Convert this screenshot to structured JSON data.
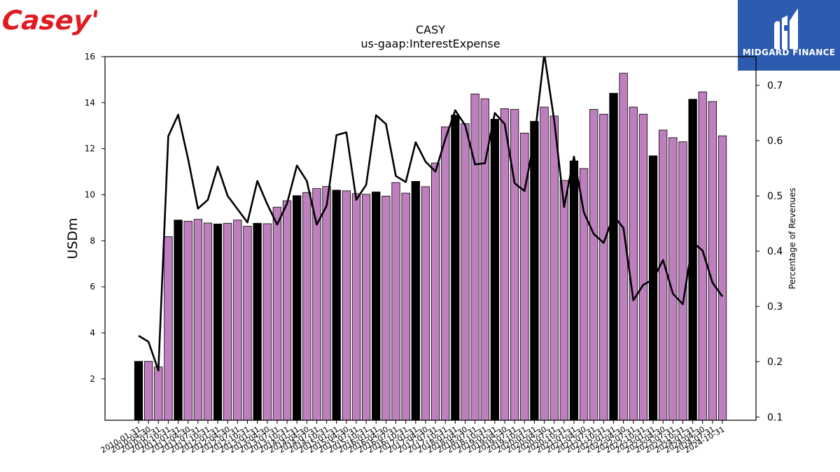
{
  "brand": {
    "name": "Casey's"
  },
  "publisher": {
    "name": "MIDGARD FINANCE"
  },
  "chart_data": {
    "type": "bar",
    "title": "CASY",
    "subtitle": "us-gaap:InterestExpense",
    "ylabel": "USDm",
    "y2label": "Percentage of Revenues",
    "ylim": [
      0.2,
      16
    ],
    "y2lim": [
      0.094,
      0.752
    ],
    "yticks": [
      2,
      4,
      6,
      8,
      10,
      12,
      14,
      16
    ],
    "y2ticks": [
      0.1,
      0.2,
      0.3,
      0.4,
      0.5,
      0.6,
      0.7
    ],
    "colors": {
      "quarter": "#bf7fbf",
      "fiscal_year": "#000000",
      "line": "#000000"
    },
    "categories": [
      "2010-01-31",
      "2010-04-30",
      "2010-07-31",
      "2010-10-31",
      "2011-01-31",
      "2011-04-30",
      "2011-07-31",
      "2011-10-31",
      "2012-01-31",
      "2012-04-30",
      "2012-07-31",
      "2012-10-31",
      "2013-01-31",
      "2013-04-30",
      "2013-07-31",
      "2013-10-31",
      "2014-01-31",
      "2014-04-30",
      "2014-07-31",
      "2014-10-31",
      "2015-01-31",
      "2015-04-30",
      "2015-07-31",
      "2015-10-31",
      "2016-01-31",
      "2016-04-30",
      "2016-07-31",
      "2016-10-31",
      "2017-01-31",
      "2017-04-30",
      "2017-07-31",
      "2017-10-31",
      "2018-01-31",
      "2018-04-30",
      "2018-07-31",
      "2018-10-31",
      "2019-01-31",
      "2019-04-30",
      "2019-07-31",
      "2019-10-31",
      "2020-01-31",
      "2020-04-30",
      "2020-07-31",
      "2020-10-31",
      "2021-01-31",
      "2021-04-30",
      "2021-07-31",
      "2021-10-31",
      "2022-01-31",
      "2022-04-30",
      "2022-07-31",
      "2022-10-31",
      "2023-01-31",
      "2023-04-30",
      "2023-07-31",
      "2023-10-31",
      "2024-01-31",
      "2024-04-30",
      "2024-07-31",
      "2024-10-31"
    ],
    "xtick_labels": [
      "2010-01-31",
      "2010-04-30",
      "2010-07-31",
      "2010-10-31",
      "2011-01-31",
      "2011-04-30",
      "2011-07-31",
      "2011-10-31",
      "2012-01-31",
      "2012-04-30",
      "2012-07-31",
      "2012-10-31",
      "2013-01-31",
      "2013-04-30",
      "2013-07-31",
      "2013-10-31",
      "2014-01-31",
      "2014-04-30",
      "2014-07-31",
      "2014-10-31",
      "2015-01-31",
      "2015-04-30",
      "2015-07-31",
      "2015-10-31",
      "2016-01-31",
      "2016-04-30",
      "2016-07-31",
      "2016-10-31",
      "2017-01-31",
      "2017-04-30",
      "2017-07-31",
      "2017-10-31",
      "2018-01-31",
      "2018-04-30",
      "2018-07-31",
      "2018-10-31",
      "2019-01-31",
      "2019-04-30",
      "2019-07-31",
      "2019-10-31",
      "2020-01-31",
      "2020-04-30",
      "2020-07-31",
      "2020-10-31",
      "2021-01-31",
      "2021-04-30",
      "2021-07-31",
      "2021-10-31",
      "2022-01-31",
      "2022-04-30",
      "2022-07-31",
      "2022-10-31",
      "2023-01-31",
      "2023-04-30",
      "2023-07-31",
      "2023-10-31",
      "2024-01-31",
      "2024-04-30",
      "2024-07-31",
      "2024-10-31"
    ],
    "fiscal_year_end": [
      true,
      false,
      false,
      false,
      true,
      false,
      false,
      false,
      true,
      false,
      false,
      false,
      true,
      false,
      false,
      false,
      true,
      false,
      false,
      false,
      true,
      false,
      false,
      false,
      true,
      false,
      false,
      false,
      true,
      false,
      false,
      false,
      true,
      false,
      false,
      false,
      true,
      false,
      false,
      false,
      true,
      false,
      false,
      false,
      true,
      false,
      false,
      false,
      true,
      false,
      false,
      false,
      true,
      false,
      false,
      false,
      true,
      false,
      false,
      false
    ],
    "series": [
      {
        "type": "bar",
        "values": [
          2.76,
          2.76,
          2.52,
          8.18,
          8.9,
          8.85,
          8.93,
          8.77,
          8.73,
          8.76,
          8.9,
          8.63,
          8.76,
          8.74,
          9.46,
          9.74,
          9.96,
          10.1,
          10.27,
          10.36,
          10.2,
          10.17,
          10.05,
          10.02,
          10.12,
          9.94,
          10.53,
          10.07,
          10.58,
          10.35,
          11.38,
          12.95,
          13.46,
          13.09,
          14.38,
          14.17,
          13.28,
          13.74,
          13.71,
          12.68,
          13.19,
          13.81,
          13.42,
          10.62,
          11.47,
          11.14,
          13.71,
          13.5,
          14.41,
          15.28,
          13.81,
          13.5,
          11.69,
          12.81,
          12.48,
          12.3,
          14.15,
          14.47,
          14.05,
          12.56
        ]
      },
      {
        "type": "line",
        "axis": "y2",
        "values": [
          0.247,
          0.236,
          0.184,
          0.608,
          0.647,
          0.567,
          0.477,
          0.493,
          0.553,
          0.5,
          0.476,
          0.452,
          0.527,
          0.485,
          0.448,
          0.486,
          0.555,
          0.527,
          0.448,
          0.482,
          0.61,
          0.615,
          0.493,
          0.52,
          0.646,
          0.63,
          0.536,
          0.525,
          0.597,
          0.562,
          0.544,
          0.603,
          0.655,
          0.628,
          0.557,
          0.559,
          0.65,
          0.63,
          0.523,
          0.509,
          0.603,
          0.757,
          0.637,
          0.48,
          0.571,
          0.47,
          0.431,
          0.415,
          0.464,
          0.442,
          0.311,
          0.339,
          0.349,
          0.384,
          0.323,
          0.304,
          0.416,
          0.401,
          0.343,
          0.318
        ]
      }
    ]
  }
}
